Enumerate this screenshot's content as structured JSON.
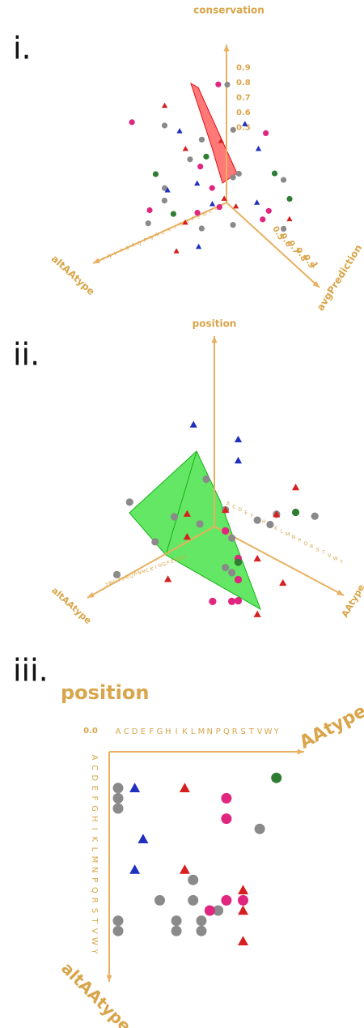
{
  "chart_data": [
    {
      "type": "scatter3d",
      "label": "i.",
      "x_label": "altAAtype",
      "y_label": "avgPrediction",
      "z_label": "conservation",
      "x_categories": [
        "A",
        "C",
        "D",
        "E",
        "F",
        "G",
        "H",
        "I",
        "K",
        "L",
        "M",
        "N",
        "P",
        "Q",
        "R",
        "S",
        "T",
        "V",
        "W",
        "Y"
      ],
      "ylim": [
        0,
        1
      ],
      "yticks": [
        0.5,
        0.6,
        0.7,
        0.8,
        0.9,
        1
      ],
      "zlim": [
        0,
        1
      ],
      "zticks": [
        0.5,
        0.6,
        0.7,
        0.8,
        0.9
      ],
      "series": [
        {
          "color": "#8a8a8a",
          "marker": "circle",
          "x": [
            "A",
            "D",
            "G",
            "K",
            "M",
            "P",
            "S",
            "W",
            "C",
            "F",
            "I",
            "N",
            "R",
            "V"
          ],
          "y": [
            0.1,
            0.3,
            0.5,
            0.7,
            0.9,
            0.2,
            0.4,
            0.6,
            0.8,
            1.0,
            0.15,
            0.55,
            0.75,
            0.35
          ],
          "z": [
            0.8,
            0.6,
            0.4,
            0.2,
            0.7,
            0.3,
            0.9,
            0.5,
            0.1,
            0.6,
            0.4,
            0.8,
            0.3,
            0.2
          ]
        },
        {
          "color": "#e0267f",
          "marker": "circle",
          "x": [
            "C",
            "E",
            "H",
            "L",
            "Q",
            "T",
            "Y",
            "D",
            "K",
            "R"
          ],
          "y": [
            0.6,
            0.2,
            0.9,
            0.4,
            0.8,
            0.1,
            0.5,
            0.7,
            0.3,
            0.95
          ],
          "z": [
            0.7,
            0.9,
            0.3,
            0.5,
            0.6,
            0.8,
            0.4,
            0.2,
            0.1,
            0.55
          ]
        },
        {
          "color": "#2e7d32",
          "marker": "circle",
          "x": [
            "F",
            "N",
            "S",
            "A",
            "W"
          ],
          "y": [
            0.9,
            0.6,
            0.3,
            0.8,
            0.7
          ],
          "z": [
            0.6,
            0.7,
            0.5,
            0.3,
            0.45
          ]
        },
        {
          "color": "#d62020",
          "marker": "triangle",
          "x": [
            "G",
            "L",
            "P",
            "T",
            "E",
            "I",
            "M",
            "Y"
          ],
          "y": [
            0.4,
            0.8,
            0.2,
            0.6,
            1.0,
            0.5,
            0.3,
            0.9
          ],
          "z": [
            0.2,
            0.4,
            0.9,
            0.1,
            0.3,
            0.7,
            0.6,
            0.5
          ]
        },
        {
          "color": "#1f2fbf",
          "marker": "triangle",
          "x": [
            "H",
            "C",
            "Q",
            "V",
            "K",
            "F",
            "T",
            "A"
          ],
          "y": [
            0.7,
            0.5,
            0.3,
            0.9,
            0.1,
            0.2,
            0.85,
            0.45
          ],
          "z": [
            0.9,
            0.15,
            0.35,
            0.75,
            0.6,
            0.05,
            0.25,
            0.5
          ]
        }
      ]
    },
    {
      "type": "scatter3d",
      "label": "ii.",
      "x_label": "altAAtype",
      "y_label": "AAtype",
      "z_label": "position",
      "x_categories": [
        "A",
        "C",
        "D",
        "E",
        "F",
        "G",
        "H",
        "I",
        "K",
        "L",
        "M",
        "N",
        "P",
        "Q",
        "R",
        "S",
        "T",
        "V",
        "W",
        "Y"
      ],
      "y_categories": [
        "A",
        "C",
        "D",
        "E",
        "F",
        "G",
        "H",
        "I",
        "K",
        "L",
        "M",
        "N",
        "P",
        "Q",
        "R",
        "S",
        "T",
        "V",
        "W",
        "Y"
      ],
      "zlim": [
        0,
        100
      ],
      "series": [
        {
          "color": "#8a8a8a",
          "marker": "circle",
          "x": [
            "A",
            "C",
            "A",
            "E",
            "I",
            "K",
            "L",
            "A",
            "M",
            "P",
            "R",
            "G",
            "S",
            "T"
          ],
          "y": [
            "A",
            "W",
            "K",
            "D",
            "M",
            "Y",
            "P",
            "F",
            "R",
            "A",
            "H",
            "S",
            "C",
            "N"
          ],
          "z": [
            40,
            55,
            30,
            20,
            15,
            70,
            60,
            10,
            25,
            45,
            35,
            50,
            5,
            65
          ]
        },
        {
          "color": "#e0267f",
          "marker": "circle",
          "x": [
            "N",
            "P",
            "Q",
            "S",
            "M",
            "R"
          ],
          "y": [
            "T",
            "V",
            "W",
            "Y",
            "Q",
            "S"
          ],
          "z": [
            40,
            30,
            20,
            25,
            50,
            15
          ]
        },
        {
          "color": "#2e7d32",
          "marker": "circle",
          "x": [
            "D",
            "L"
          ],
          "y": [
            "T",
            "R"
          ],
          "z": [
            55,
            30
          ]
        },
        {
          "color": "#d62020",
          "marker": "triangle",
          "x": [
            "E",
            "F",
            "H",
            "K",
            "L",
            "N",
            "Q",
            "R",
            "G"
          ],
          "y": [
            "V",
            "S",
            "W",
            "T",
            "P",
            "Y",
            "M",
            "K",
            "D"
          ],
          "z": [
            75,
            55,
            20,
            35,
            60,
            10,
            45,
            15,
            30
          ]
        },
        {
          "color": "#1f2fbf",
          "marker": "triangle",
          "x": [
            "C",
            "D",
            "G"
          ],
          "y": [
            "H",
            "I",
            "E"
          ],
          "z": [
            80,
            70,
            90
          ]
        }
      ]
    },
    {
      "type": "scatter",
      "label": "iii.",
      "title": "position",
      "x_label": "AAtype",
      "y_label": "altAAtype",
      "corner_label": "0.0",
      "x_categories": [
        "A",
        "C",
        "D",
        "E",
        "F",
        "G",
        "H",
        "I",
        "K",
        "L",
        "M",
        "N",
        "P",
        "Q",
        "R",
        "S",
        "T",
        "V",
        "W",
        "Y"
      ],
      "y_categories": [
        "A",
        "C",
        "D",
        "E",
        "F",
        "G",
        "H",
        "I",
        "K",
        "L",
        "M",
        "N",
        "P",
        "Q",
        "R",
        "S",
        "T",
        "V",
        "W",
        "Y"
      ],
      "series": [
        {
          "color": "#8a8a8a",
          "marker": "circle",
          "x": [
            "A",
            "A",
            "A",
            "V",
            "L",
            "G",
            "L",
            "P",
            "A",
            "A",
            "I",
            "I",
            "M",
            "M"
          ],
          "y": [
            "E",
            "F",
            "G",
            "I",
            "P",
            "R",
            "R",
            "S",
            "T",
            "V",
            "T",
            "V",
            "T",
            "V"
          ]
        },
        {
          "color": "#e0267f",
          "marker": "circle",
          "x": [
            "Q",
            "Q",
            "Q",
            "S",
            "N"
          ],
          "y": [
            "F",
            "H",
            "R",
            "R",
            "S"
          ]
        },
        {
          "color": "#2e7d32",
          "marker": "circle",
          "x": [
            "Y"
          ],
          "y": [
            "D"
          ]
        },
        {
          "color": "#d62020",
          "marker": "triangle",
          "x": [
            "K",
            "K",
            "S",
            "S",
            "S"
          ],
          "y": [
            "E",
            "N",
            "Q",
            "S",
            "W"
          ]
        },
        {
          "color": "#1f2fbf",
          "marker": "triangle",
          "x": [
            "D",
            "E",
            "D"
          ],
          "y": [
            "E",
            "K",
            "N"
          ]
        }
      ]
    }
  ]
}
